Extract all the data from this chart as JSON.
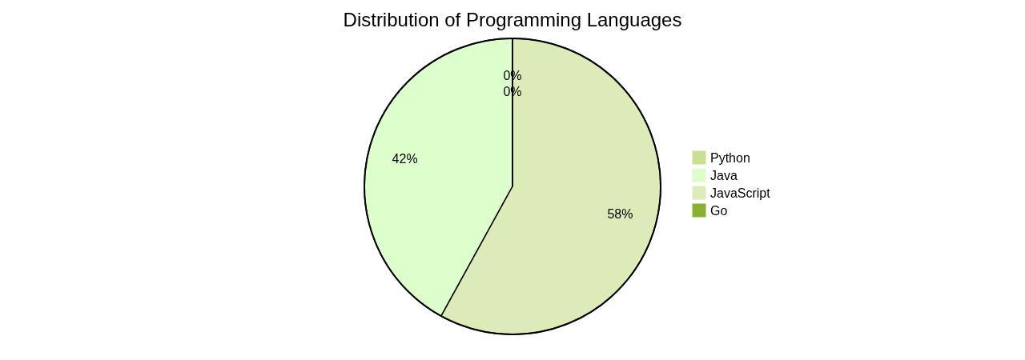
{
  "chart_data": {
    "type": "pie",
    "title": "Distribution of Programming Languages",
    "categories": [
      "Python",
      "Java",
      "JavaScript",
      "Go"
    ],
    "values": [
      0,
      42,
      58,
      0
    ],
    "value_labels": [
      "0%",
      "42%",
      "58%",
      "0%"
    ],
    "colors": [
      "#cadf93",
      "#dcffcc",
      "#dcebb8",
      "#8bb031"
    ],
    "legend": "right"
  }
}
